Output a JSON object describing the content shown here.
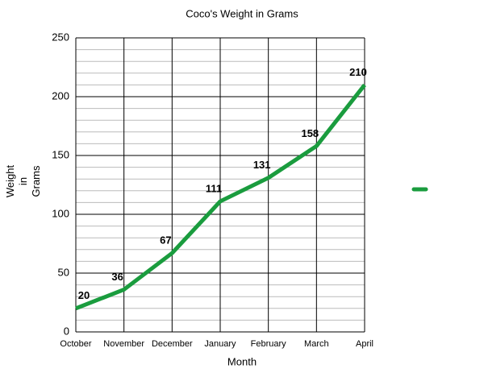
{
  "chart_data": {
    "type": "line",
    "title": "Coco's Weight in Grams",
    "x_label": "Month",
    "y_label": "Weight in Grams",
    "categories": [
      "October",
      "November",
      "December",
      "January",
      "February",
      "March",
      "April"
    ],
    "series": [
      {
        "color": "#1a9c3e",
        "values": [
          20,
          36,
          67,
          111,
          131,
          158,
          210
        ]
      }
    ],
    "ylim": [
      0,
      250
    ],
    "yticks": [
      0,
      50,
      100,
      150,
      200,
      250
    ],
    "grid": true,
    "minor_grid_step": 10,
    "legend": "right"
  }
}
